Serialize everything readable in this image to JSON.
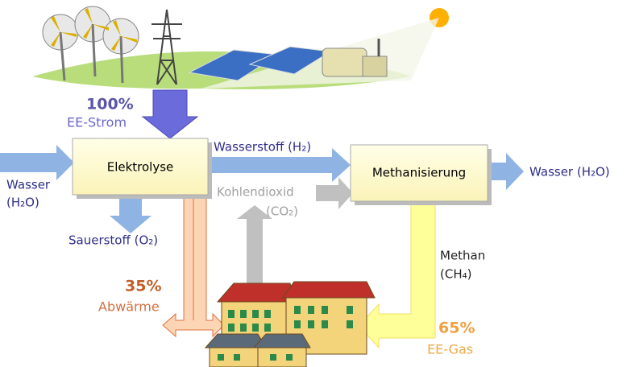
{
  "input": {
    "percent": "100%",
    "label": "EE-Strom"
  },
  "nodes": [
    {
      "label": "Elektrolyse"
    },
    {
      "label": "Methanisierung"
    }
  ],
  "flows": {
    "water_in": [
      "Wasser",
      "(H₂O)"
    ],
    "hydrogen": "Wasserstoff (H₂)",
    "oxygen": "Sauerstoff (O₂)",
    "co2": [
      "Kohlendioxid",
      "(CO₂)"
    ],
    "water_out": "Wasser (H₂O)",
    "methane": [
      "Methan",
      "(CH₄)"
    ],
    "heat": {
      "percent": "35%",
      "label": "Abwärme"
    },
    "gas": {
      "percent": "65%",
      "label": "EE-Gas"
    }
  }
}
